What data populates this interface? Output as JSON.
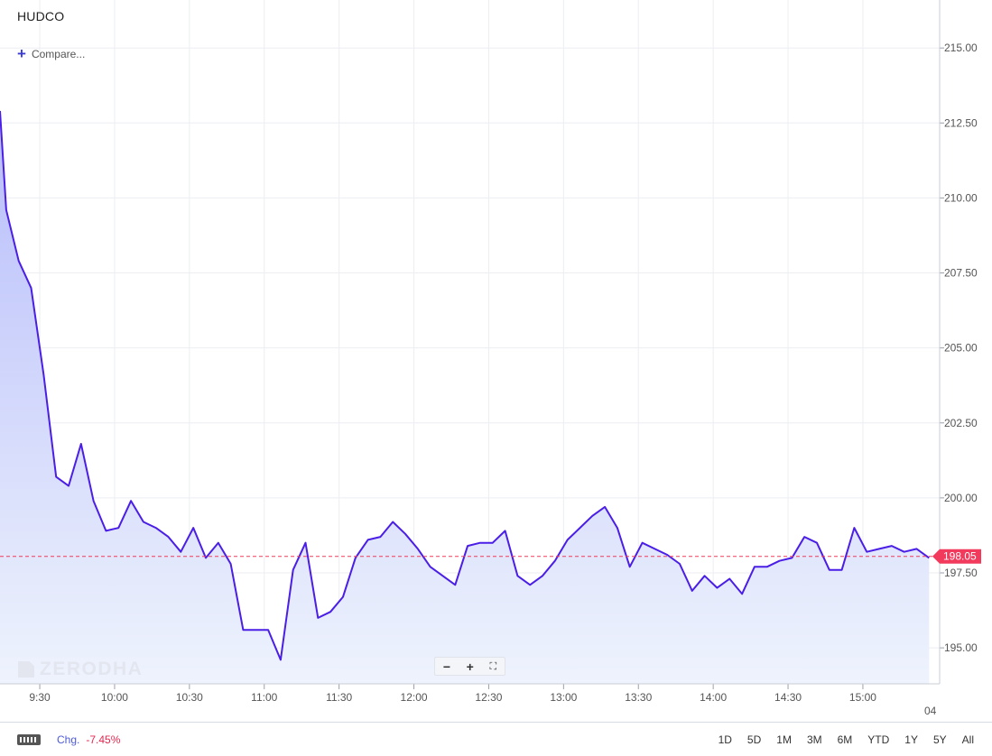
{
  "symbol": "HUDCO",
  "compare_label": "Compare...",
  "watermark": "ZERODHA",
  "icons": {
    "compare": "plus-icon",
    "zoom_out": "minus-icon",
    "zoom_in": "plus-icon",
    "fullscreen": "expand-icon",
    "keyboard": "keyboard-icon",
    "watermark_logo": "zerodha-logo-icon"
  },
  "zoom": {
    "out": "−",
    "in": "+",
    "full": "⛶"
  },
  "footer": {
    "chg_label": "Chg.",
    "chg_value": "-7.45%",
    "ranges": [
      "1D",
      "5D",
      "1M",
      "3M",
      "6M",
      "YTD",
      "1Y",
      "5Y",
      "All"
    ]
  },
  "colors": {
    "line": "#4a1ee6",
    "fill_top": "#b7bdfa",
    "fill_bottom": "#eef3fd",
    "last_price": "#f23a5c",
    "grid": "#eceef2",
    "axis_text": "#555555"
  },
  "chart_data": {
    "type": "area",
    "last_price": 198.05,
    "ylim": [
      193.8,
      216.6
    ],
    "yticks": [
      195.0,
      197.5,
      200.0,
      202.5,
      205.0,
      207.5,
      210.0,
      212.5,
      215.0
    ],
    "ytick_labels": [
      "195.00",
      "197.50",
      "200.00",
      "202.50",
      "205.00",
      "207.50",
      "210.00",
      "212.50",
      "215.00"
    ],
    "x_start": "09:15",
    "x_interval_minutes": 5,
    "x_end": "15:40",
    "xticks": [
      "9:30",
      "10:00",
      "10:30",
      "11:00",
      "11:30",
      "12:00",
      "12:30",
      "13:00",
      "13:30",
      "14:00",
      "14:30",
      "15:00"
    ],
    "xtick_trailing_label": "04",
    "grid": true,
    "values": [
      212.9,
      209.6,
      207.9,
      207.0,
      204.1,
      200.7,
      200.4,
      201.8,
      199.9,
      198.9,
      199.0,
      199.9,
      199.2,
      199.0,
      198.7,
      198.2,
      199.0,
      198.0,
      198.5,
      197.8,
      195.6,
      195.6,
      195.6,
      194.6,
      197.6,
      198.5,
      196.0,
      196.2,
      196.7,
      198.0,
      198.6,
      198.7,
      199.2,
      198.8,
      198.3,
      197.7,
      197.4,
      197.1,
      198.4,
      198.5,
      198.5,
      198.9,
      197.4,
      197.1,
      197.4,
      197.9,
      198.6,
      199.0,
      199.4,
      199.7,
      199.0,
      197.7,
      198.5,
      198.3,
      198.1,
      197.8,
      196.9,
      197.4,
      197.0,
      197.3,
      196.8,
      197.7,
      197.7,
      197.9,
      198.0,
      198.7,
      198.5,
      197.6,
      197.6,
      199.0,
      198.2,
      198.3,
      198.4,
      198.2,
      198.3,
      198.0
    ]
  }
}
